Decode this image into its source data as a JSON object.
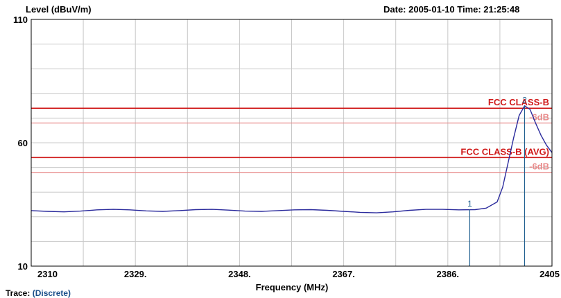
{
  "header": {
    "ylabel": "Level (dBuV/m)",
    "date_label": "Date: 2005-01-10",
    "time_label": "Time: 21:25:48"
  },
  "footer": {
    "trace_label": "Trace:",
    "trace_value": "(Discrete)"
  },
  "colors": {
    "trace": "#2a2a9c",
    "limit": "#d01a1a",
    "limit_margin": "#e88a8a",
    "grid": "#c8c8c8",
    "marker": "#1f5f8f"
  },
  "chart_data": {
    "type": "line",
    "xlabel": "Frequency (MHz)",
    "ylabel": "Level (dBuV/m)",
    "xlim": [
      2310,
      2405
    ],
    "ylim": [
      10,
      110
    ],
    "x_ticks": [
      "2310",
      "2329.",
      "2348.",
      "2367.",
      "2386.",
      "2405"
    ],
    "y_ticks": [
      "110",
      "60",
      "10"
    ],
    "grid": true,
    "series": [
      {
        "x": [
          2310,
          2313,
          2316,
          2319,
          2322,
          2325,
          2328,
          2331,
          2334,
          2337,
          2340,
          2343,
          2346,
          2349,
          2352,
          2355,
          2358,
          2361,
          2364,
          2367,
          2370,
          2373,
          2376,
          2379,
          2382,
          2385,
          2388,
          2391,
          2393,
          2395,
          2396,
          2397,
          2398,
          2399,
          2400,
          2401,
          2402,
          2403,
          2404,
          2405
        ],
        "values": [
          32.5,
          32.2,
          32.0,
          32.3,
          32.8,
          33.0,
          32.8,
          32.4,
          32.2,
          32.5,
          32.9,
          33.0,
          32.7,
          32.3,
          32.2,
          32.5,
          32.8,
          32.9,
          32.6,
          32.2,
          31.8,
          31.6,
          32.0,
          32.6,
          33.0,
          33.0,
          32.8,
          32.9,
          33.5,
          36,
          42,
          52,
          62,
          71,
          75,
          73.5,
          68,
          63,
          59,
          56
        ]
      }
    ],
    "limit_lines": [
      {
        "label": "FCC CLASS-B",
        "value": 74
      },
      {
        "label": "-6dB",
        "value": 68
      },
      {
        "label": "FCC CLASS-B (AVG)",
        "value": 54
      },
      {
        "label": "-6dB",
        "value": 48
      }
    ],
    "markers": [
      {
        "label": "1",
        "x": 2390,
        "y": 33.0
      },
      {
        "label": "2",
        "x": 2400,
        "y": 75.0
      }
    ]
  }
}
